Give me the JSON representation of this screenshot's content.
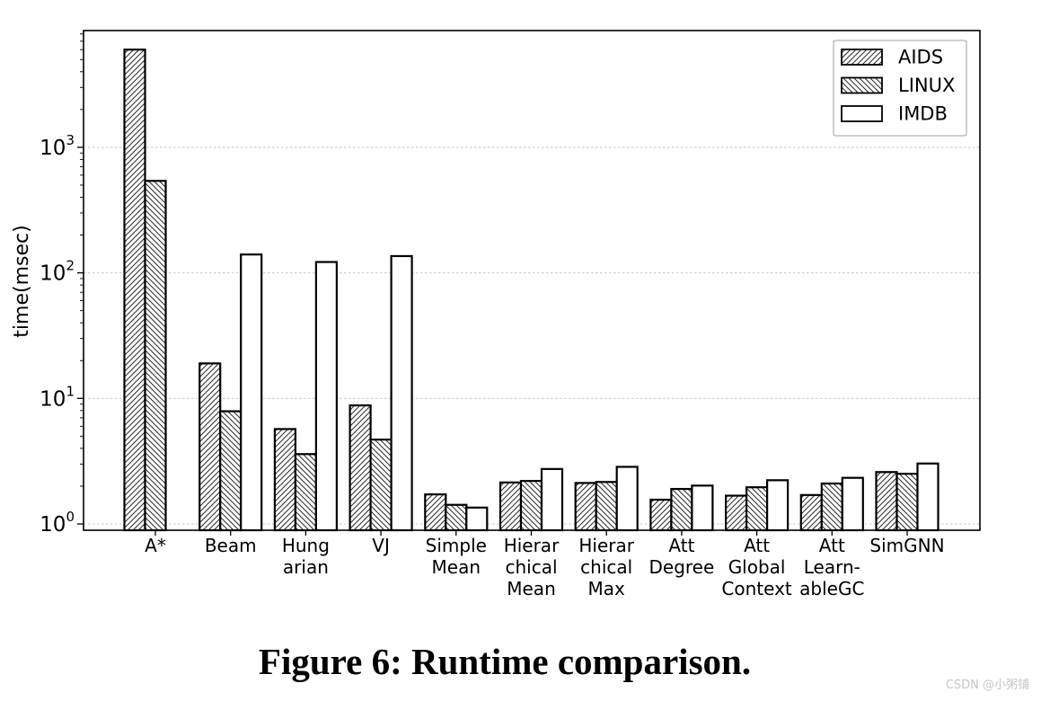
{
  "figure": {
    "caption": "Figure 6: Runtime comparison.",
    "watermark": "CSDN @小粥铺"
  },
  "colors": {
    "bar_fill": "#ffffff",
    "bar_edge": "#000000",
    "hatch": "#333333",
    "grid": "#c9c9c9",
    "axis": "#000000",
    "legend_border": "#b3b3b3",
    "text": "#000000",
    "watermark": "#c6c6c6"
  },
  "chart_data": {
    "type": "bar",
    "title": "",
    "xlabel": "",
    "ylabel": "time(msec)",
    "yscale": "log",
    "ylim": [
      1,
      8200
    ],
    "grid": "horizontal-dashed",
    "yticks": [
      {
        "base": "10",
        "exp": "0",
        "value": 1
      },
      {
        "base": "10",
        "exp": "1",
        "value": 10
      },
      {
        "base": "10",
        "exp": "2",
        "value": 100
      },
      {
        "base": "10",
        "exp": "3",
        "value": 1000
      }
    ],
    "categories": [
      [
        "A*"
      ],
      [
        "Beam"
      ],
      [
        "Hung",
        "arian"
      ],
      [
        "VJ"
      ],
      [
        "Simple",
        "Mean"
      ],
      [
        "Hierar",
        "chical",
        "Mean"
      ],
      [
        "Hierar",
        "chical",
        "Max"
      ],
      [
        "Att",
        "Degree"
      ],
      [
        "Att",
        "Global",
        "Context"
      ],
      [
        "Att",
        "Learn-",
        "ableGC"
      ],
      [
        "SimGNN"
      ]
    ],
    "series": [
      {
        "name": "AIDS",
        "hatch": "diagonal-forward",
        "values": [
          6000,
          19,
          5.7,
          8.8,
          1.72,
          2.14,
          2.12,
          1.56,
          1.68,
          1.7,
          2.59
        ]
      },
      {
        "name": "LINUX",
        "hatch": "diagonal-backward",
        "values": [
          540,
          7.9,
          3.6,
          4.7,
          1.42,
          2.2,
          2.16,
          1.9,
          1.96,
          2.1,
          2.51
        ]
      },
      {
        "name": "IMDB",
        "hatch": "none",
        "values": [
          null,
          140,
          122,
          136,
          1.35,
          2.74,
          2.85,
          2.02,
          2.23,
          2.33,
          3.03
        ]
      }
    ],
    "legend": {
      "position": "upper-right",
      "labels": [
        "AIDS",
        "LINUX",
        "IMDB"
      ]
    }
  }
}
